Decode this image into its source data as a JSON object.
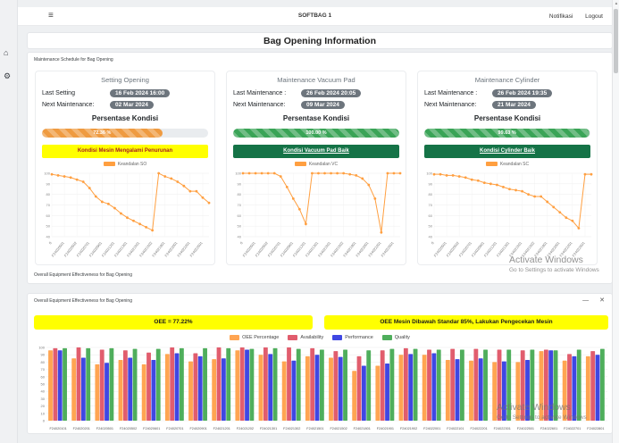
{
  "navbar": {
    "title": "SOFTBAG 1",
    "links": [
      {
        "label": "Notifikasi"
      },
      {
        "label": "Logout"
      }
    ]
  },
  "page": {
    "title": "Bag Opening Information"
  },
  "sections": {
    "maintenance_label": "Maintenance Schedule for Bag Opening",
    "oee_label": "Overall Equipment Effectiveness for Bag Opening"
  },
  "colors": {
    "line_orange": "#ff9f40",
    "oee_orange": "#ffa552",
    "availability_red": "#e15d6d",
    "performance_blue": "#3f47e3",
    "quality_green": "#4fae5c",
    "progress_orange": "#ef9b41",
    "progress_green": "#3aa457",
    "banner_yellow": "#ffff00",
    "banner_green": "#157347",
    "badge_gray": "#6d757d"
  },
  "panels": [
    {
      "title": "Setting Opening",
      "last_label": "Last Setting",
      "last_value": "16 Feb 2024 16:00",
      "next_label": "Next Maintenance:",
      "next_value": "02 Mar 2024",
      "condition_title": "Persentase Kondisi",
      "percent_label": "72.36 %",
      "percent_value": 72.36,
      "banner": "Kondisi Mesin Mengalami Penurunan"
    },
    {
      "title": "Maintenance Vacuum Pad",
      "last_label": "Last Maintenance :",
      "last_value": "26 Feb 2024 20:05",
      "next_label": "Next Maintenance:",
      "next_value": "09 Mar 2024",
      "condition_title": "Persentase Kondisi",
      "percent_label": "100.00 %",
      "percent_value": 100,
      "banner": "Kondisi Vacuum Pad Baik"
    },
    {
      "title": "Maintenance Cylinder",
      "last_label": "Last Maintenance :",
      "last_value": "26 Feb 2024 19:35",
      "next_label": "Next Maintenance:",
      "next_value": "21 Mar 2024",
      "condition_title": "Persentase Kondisi",
      "percent_label": "99.63 %",
      "percent_value": 99.63,
      "banner": "Kondisi Cylinder Baik"
    }
  ],
  "oee_window": {
    "title": "Overall Equipment Effectiveness for Bag Opening",
    "minimize_label": "—",
    "close_label": "✕",
    "banner_left": "OEE = 77.22%",
    "banner_right": "OEE Mesin Dibawah Standar 85%, Lakukan Pengecekan Mesin"
  },
  "watermark": {
    "line1": "Activate Windows",
    "line2": "Go to Settings to activate Windows"
  },
  "chart_data": [
    {
      "type": "line",
      "legend": "Keandalan SO",
      "color": "#ff9f40",
      "ylim": [
        40,
        100
      ],
      "grid": true,
      "tick_every": 2,
      "x_labels": [
        "0",
        "F24020501",
        "F24020502",
        "F24020701",
        "F24020901",
        "F24021201",
        "F24021301",
        "F24021501",
        "F24021502",
        "F24021901",
        "F24022001",
        "F24022201",
        "F24022501"
      ],
      "values": [
        99,
        98,
        97,
        96,
        94,
        92,
        86,
        78,
        73,
        71,
        67,
        62,
        58,
        55,
        52,
        49,
        46,
        100,
        97,
        95,
        92,
        88,
        83,
        83,
        77,
        72
      ]
    },
    {
      "type": "line",
      "legend": "Keandalan VC",
      "color": "#ff9f40",
      "ylim": [
        40,
        100
      ],
      "grid": true,
      "tick_every": 2,
      "x_labels": [
        "0",
        "F24020501",
        "F24020502",
        "F24020701",
        "F24020901",
        "F24021201",
        "F24021301",
        "F24021501",
        "F24021502",
        "F24021901",
        "F24022001",
        "F24022201",
        "F24022501"
      ],
      "values": [
        100,
        100,
        100,
        100,
        100,
        100,
        97,
        87,
        76,
        66,
        52,
        100,
        100,
        100,
        100,
        100,
        100,
        99,
        98,
        95,
        89,
        76,
        44,
        100,
        100,
        100
      ]
    },
    {
      "type": "line",
      "legend": "Keandalan SC",
      "color": "#ff9f40",
      "ylim": [
        40,
        100
      ],
      "grid": true,
      "tick_every": 2,
      "x_labels": [
        "0",
        "F24020501",
        "F24020502",
        "F24020701",
        "F24020901",
        "F24021201",
        "F24021301",
        "F24021501",
        "F24021502",
        "F24021901",
        "F24022001",
        "F24022201",
        "F24022501"
      ],
      "values": [
        99,
        99,
        98,
        98,
        97,
        96,
        94,
        93,
        91,
        90,
        89,
        87,
        85,
        84,
        83,
        80,
        78,
        78,
        73,
        68,
        63,
        58,
        55,
        48,
        99,
        99
      ]
    },
    {
      "type": "bar",
      "ylim": [
        0,
        100
      ],
      "grid": true,
      "legend_position": "top",
      "categories": [
        "F24020101",
        "F24020201",
        "F24020501",
        "F24020502",
        "F24020601",
        "F24020701",
        "F24020901",
        "F24021201",
        "F24021202",
        "F24021301",
        "F24021302",
        "F24021501",
        "F24021502",
        "F24021801",
        "F24021901",
        "F24021902",
        "F24022001",
        "F24022101",
        "F24022201",
        "F24022301",
        "F24022501",
        "F24022601",
        "F24022701",
        "F24022801"
      ],
      "series": [
        {
          "name": "OEE Percentage",
          "color": "#ffa552",
          "values": [
            96,
            85,
            77,
            83,
            77,
            91,
            81,
            84,
            96,
            90,
            81,
            88,
            86,
            68,
            75,
            90,
            90,
            83,
            82,
            80,
            80,
            95,
            82,
            88
          ]
        },
        {
          "name": "Availability",
          "color": "#e15d6d",
          "values": [
            99,
            100,
            97,
            96,
            93,
            100,
            92,
            100,
            100,
            100,
            100,
            99,
            95,
            88,
            96,
            99,
            97,
            98,
            98,
            97,
            96,
            97,
            91,
            95
          ]
        },
        {
          "name": "Performance",
          "color": "#3f47e3",
          "values": [
            96,
            86,
            79,
            86,
            83,
            92,
            88,
            85,
            97,
            91,
            82,
            90,
            87,
            75,
            78,
            91,
            92,
            84,
            85,
            81,
            83,
            96,
            88,
            90
          ]
        },
        {
          "name": "Quality",
          "color": "#4fae5c",
          "values": [
            99,
            99,
            99,
            98,
            98,
            99,
            99,
            99,
            98,
            99,
            98,
            97,
            97,
            96,
            98,
            98,
            97,
            97,
            97,
            97,
            97,
            96,
            97,
            98
          ]
        }
      ]
    }
  ]
}
